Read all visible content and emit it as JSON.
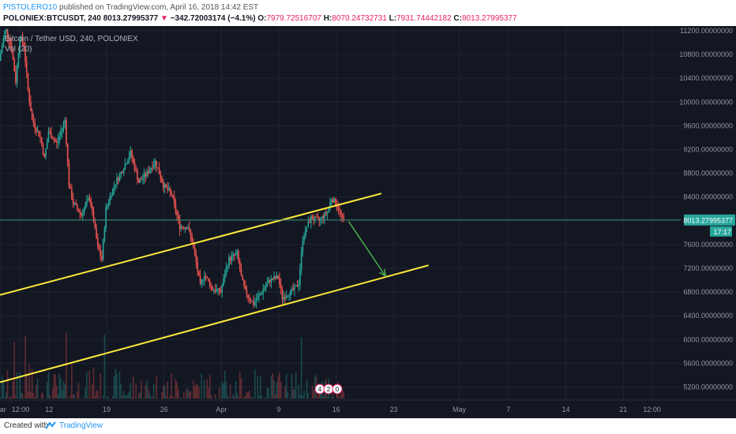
{
  "header": {
    "author": "PISTOLERO10",
    "published_text": " published on TradingView.com, April 16, 2018 14:42 EST",
    "symbol": "POLONIEX:BTCUSDT, 240",
    "last": "8013.27995377",
    "change_arrow": "▼",
    "change": "−342.72003174 (−4.1%)",
    "o_label": "O:",
    "o": "7979.72516707",
    "h_label": "H:",
    "h": "8070.24732731",
    "l_label": "L:",
    "l": "7931.74442182",
    "c_label": "C:",
    "c": "8013.27995377"
  },
  "legend": {
    "title": "Bitcoin / Tether USD, 240, POLONIEX",
    "volume": "Vol (20)"
  },
  "price_label": {
    "value": "8013.27995377",
    "countdown": "17:17"
  },
  "markers": [
    "4",
    "2",
    "0"
  ],
  "footer": {
    "created": "Created with",
    "brand": "TradingView"
  },
  "colors": {
    "background": "#131722",
    "up": "#26a69a",
    "down": "#ef5350",
    "channel": "#ffeb3b",
    "arrow": "#4caf50",
    "price_line": "#3a8a72",
    "grid": "#1f2433",
    "axis_text": "#9598a1"
  },
  "chart_data": {
    "type": "candlestick",
    "title": "Bitcoin / Tether USD, 240, POLONIEX",
    "y_ticks": [
      11200,
      10800,
      10400,
      10000,
      9600,
      9200,
      8800,
      8400,
      8000,
      7600,
      7200,
      6800,
      6400,
      6000,
      5600,
      5200
    ],
    "y_tick_labels": [
      "11200.00000000",
      "10800.00000000",
      "10400.00000000",
      "10000.00000000",
      "9600.00000000",
      "9200.00000000",
      "8800.00000000",
      "8400.00000000",
      "8000.00000000",
      "7600.00000000",
      "7200.00000000",
      "6800.00000000",
      "6400.00000000",
      "6000.00000000",
      "5600.00000000",
      "5200.00000000"
    ],
    "ylim": [
      4980,
      11280
    ],
    "x_range": [
      "2018-03-06T00:00",
      "2018-05-28T00:00"
    ],
    "x_ticks": [
      {
        "t": "2018-03-06T00:00",
        "label": "Mar"
      },
      {
        "t": "2018-03-08T12:00",
        "label": "12:00"
      },
      {
        "t": "2018-03-12T00:00",
        "label": "12"
      },
      {
        "t": "2018-03-19T00:00",
        "label": "19"
      },
      {
        "t": "2018-03-26T00:00",
        "label": "26"
      },
      {
        "t": "2018-04-02T00:00",
        "label": "Apr"
      },
      {
        "t": "2018-04-09T00:00",
        "label": "9"
      },
      {
        "t": "2018-04-16T00:00",
        "label": "16"
      },
      {
        "t": "2018-04-23T00:00",
        "label": "23"
      },
      {
        "t": "2018-05-01T00:00",
        "label": "May"
      },
      {
        "t": "2018-05-07T00:00",
        "label": "7"
      },
      {
        "t": "2018-05-14T00:00",
        "label": "14"
      },
      {
        "t": "2018-05-21T00:00",
        "label": "21"
      },
      {
        "t": "2018-05-24T12:00",
        "label": "12:00"
      }
    ],
    "price_path": [
      [
        "2018-03-06T00:00",
        10700
      ],
      [
        "2018-03-06T18:00",
        11250
      ],
      [
        "2018-03-07T12:00",
        10900
      ],
      [
        "2018-03-08T00:00",
        10350
      ],
      [
        "2018-03-08T12:00",
        11100
      ],
      [
        "2018-03-09T00:00",
        10950
      ],
      [
        "2018-03-09T12:00",
        10200
      ],
      [
        "2018-03-10T00:00",
        9700
      ],
      [
        "2018-03-11T00:00",
        9400
      ],
      [
        "2018-03-11T12:00",
        9050
      ],
      [
        "2018-03-12T00:00",
        9500
      ],
      [
        "2018-03-13T00:00",
        9300
      ],
      [
        "2018-03-14T00:00",
        9700
      ],
      [
        "2018-03-14T12:00",
        8600
      ],
      [
        "2018-03-15T00:00",
        8300
      ],
      [
        "2018-03-16T00:00",
        8100
      ],
      [
        "2018-03-17T00:00",
        8400
      ],
      [
        "2018-03-17T12:00",
        8000
      ],
      [
        "2018-03-18T00:00",
        7550
      ],
      [
        "2018-03-18T12:00",
        7350
      ],
      [
        "2018-03-19T00:00",
        8200
      ],
      [
        "2018-03-20T00:00",
        8600
      ],
      [
        "2018-03-21T00:00",
        8850
      ],
      [
        "2018-03-22T00:00",
        9150
      ],
      [
        "2018-03-23T00:00",
        8650
      ],
      [
        "2018-03-24T00:00",
        8800
      ],
      [
        "2018-03-25T00:00",
        9000
      ],
      [
        "2018-03-26T00:00",
        8600
      ],
      [
        "2018-03-27T00:00",
        8450
      ],
      [
        "2018-03-28T00:00",
        7900
      ],
      [
        "2018-03-29T00:00",
        7900
      ],
      [
        "2018-03-29T12:00",
        7650
      ],
      [
        "2018-03-30T00:00",
        7300
      ],
      [
        "2018-03-30T12:00",
        6900
      ],
      [
        "2018-03-31T00:00",
        7100
      ],
      [
        "2018-04-01T00:00",
        6850
      ],
      [
        "2018-04-02T00:00",
        6800
      ],
      [
        "2018-04-02T12:00",
        7100
      ],
      [
        "2018-04-03T00:00",
        7350
      ],
      [
        "2018-04-04T00:00",
        7450
      ],
      [
        "2018-04-04T12:00",
        7050
      ],
      [
        "2018-04-05T00:00",
        6800
      ],
      [
        "2018-04-06T00:00",
        6600
      ],
      [
        "2018-04-07T00:00",
        6800
      ],
      [
        "2018-04-08T00:00",
        7000
      ],
      [
        "2018-04-09T00:00",
        7050
      ],
      [
        "2018-04-09T12:00",
        6700
      ],
      [
        "2018-04-10T00:00",
        6750
      ],
      [
        "2018-04-11T00:00",
        6850
      ],
      [
        "2018-04-11T12:00",
        6950
      ],
      [
        "2018-04-12T00:00",
        7700
      ],
      [
        "2018-04-12T12:00",
        7900
      ],
      [
        "2018-04-13T00:00",
        8050
      ],
      [
        "2018-04-14T00:00",
        8000
      ],
      [
        "2018-04-15T00:00",
        8150
      ],
      [
        "2018-04-15T12:00",
        8380
      ],
      [
        "2018-04-16T00:00",
        8300
      ],
      [
        "2018-04-16T12:00",
        8150
      ],
      [
        "2018-04-16T20:00",
        8013.28
      ]
    ],
    "last_price": 8013.28,
    "channel_upper": [
      [
        "2018-03-06T00:00",
        6750
      ],
      [
        "2018-04-21T12:00",
        8460
      ]
    ],
    "channel_lower": [
      [
        "2018-03-06T00:00",
        5280
      ],
      [
        "2018-04-27T06:00",
        7250
      ]
    ],
    "forecast_arrow": [
      [
        "2018-04-17T12:00",
        7990
      ],
      [
        "2018-04-22T00:00",
        7070
      ]
    ],
    "volume_label": "Vol (20)"
  }
}
